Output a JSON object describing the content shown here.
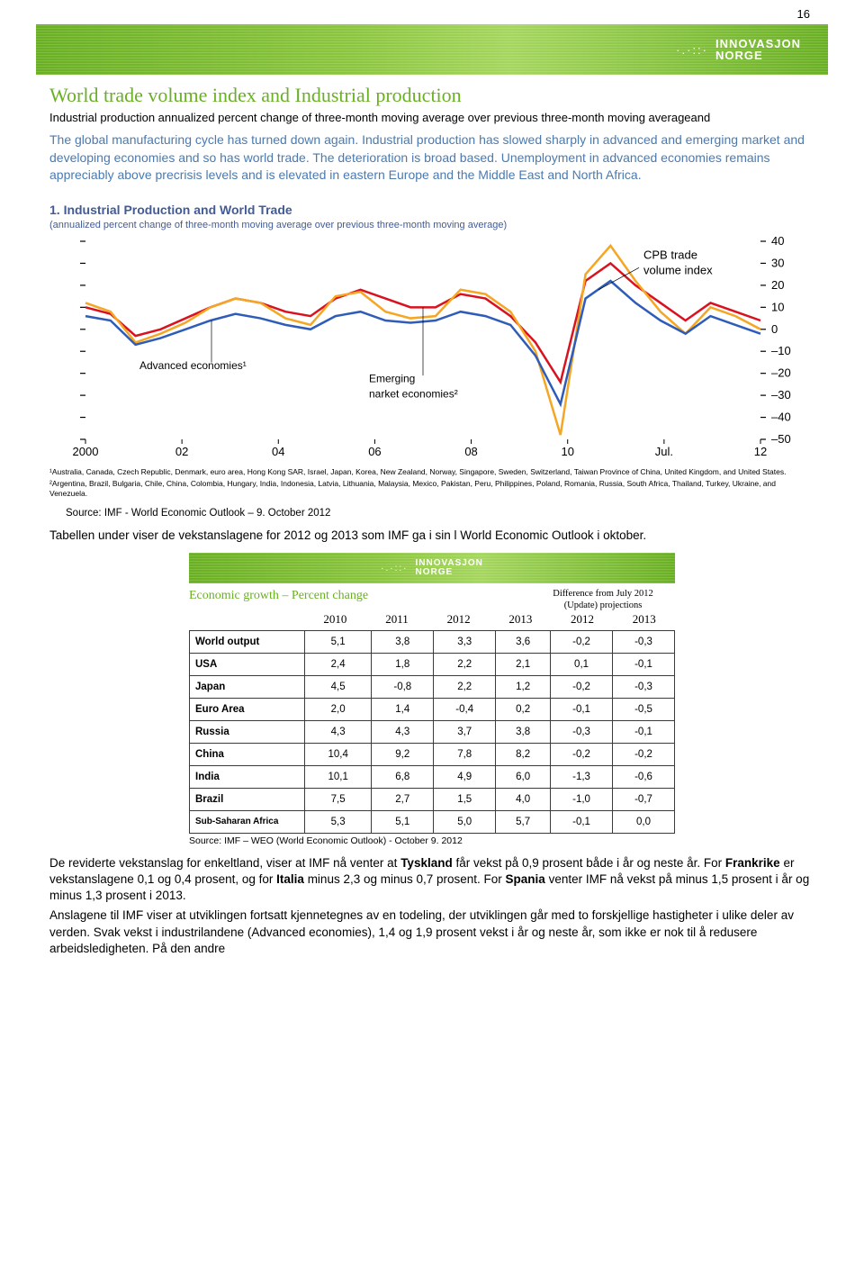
{
  "page_number": "16",
  "brand": {
    "dots": "·.·::·",
    "line1": "INNOVASJON",
    "line2": "NORGE"
  },
  "title": "World trade volume index and Industrial production",
  "subtitle": "Industrial production annualized percent change of three-month moving  average over previous three-month moving averageand",
  "blue_paragraph": "The global manufacturing cycle has turned down again. Industrial production has slowed sharply in advanced and emerging market and developing economies and so has world trade. The deterioration is broad based. Unemployment in advanced economies remains appreciably above precrisis levels and is elevated in eastern Europe and the Middle East and North Africa.",
  "chart": {
    "title": "1. Industrial Production and World Trade",
    "sub": "(annualized percent change of three-month moving average over previous three-month moving average)",
    "x_ticks": [
      "2000",
      "02",
      "04",
      "06",
      "08",
      "10",
      "Jul.",
      "12"
    ],
    "y_ticks": [
      "40",
      "30",
      "20",
      "10",
      "0",
      "–10",
      "–20",
      "–30",
      "–40",
      "–50"
    ],
    "label_cpb": "CPB trade volume index",
    "label_adv": "Advanced economies¹",
    "label_emg": "Emerging narket economies²",
    "colors": {
      "cpb": "#f5a623",
      "adv": "#2e5cb8",
      "emg": "#d9121f",
      "tick": "#000000",
      "grid": "#ffffff",
      "bg": "#ffffff",
      "label_text": "#000000"
    },
    "ylim": [
      -50,
      40
    ],
    "line_width": 2.5,
    "series": {
      "cpb": [
        12,
        8,
        -6,
        -2,
        3,
        10,
        14,
        12,
        5,
        2,
        15,
        17,
        8,
        5,
        6,
        18,
        16,
        8,
        -10,
        -48,
        25,
        38,
        22,
        8,
        -2,
        10,
        6,
        0
      ],
      "adv": [
        6,
        4,
        -7,
        -4,
        0,
        4,
        7,
        5,
        2,
        0,
        6,
        8,
        4,
        3,
        4,
        8,
        6,
        2,
        -12,
        -34,
        14,
        22,
        12,
        4,
        -2,
        6,
        2,
        -2
      ],
      "emg": [
        10,
        7,
        -3,
        0,
        5,
        10,
        14,
        12,
        8,
        6,
        14,
        18,
        14,
        10,
        10,
        16,
        14,
        6,
        -6,
        -24,
        22,
        30,
        20,
        12,
        4,
        12,
        8,
        4
      ]
    },
    "footnote1": "¹Australia, Canada, Czech Republic, Denmark, euro area, Hong Kong SAR, Israel, Japan, Korea, New Zealand, Norway, Singapore, Sweden, Switzerland, Taiwan Province of China, United Kingdom, and United States.",
    "footnote2": "²Argentina, Brazil, Bulgaria, Chile, China, Colombia, Hungary, India, Indonesia, Latvia, Lithuania, Malaysia, Mexico, Pakistan, Peru, Philippines, Poland, Romania, Russia, South Africa, Thailand, Turkey, Ukraine, and Venezuela."
  },
  "source_chart": "Source: IMF - World Economic Outlook – 9. October 2012",
  "para_tabellen": "Tabellen under viser de vekstanslagene for 2012 og 2013 som IMF ga i sin l World Economic Outlook i oktober.",
  "table": {
    "title": "Economic growth – Percent change",
    "diff_header1": "Difference from July 2012",
    "diff_header2": "(Update) projections",
    "years": [
      "2010",
      "2011",
      "2012",
      "2013",
      "2012",
      "2013"
    ],
    "rows": [
      {
        "label": "World output",
        "v": [
          "5,1",
          "3,8",
          "3,3",
          "3,6",
          "-0,2",
          "-0,3"
        ]
      },
      {
        "label": "USA",
        "v": [
          "2,4",
          "1,8",
          "2,2",
          "2,1",
          "0,1",
          "-0,1"
        ]
      },
      {
        "label": "Japan",
        "v": [
          "4,5",
          "-0,8",
          "2,2",
          "1,2",
          "-0,2",
          "-0,3"
        ]
      },
      {
        "label": "Euro Area",
        "v": [
          "2,0",
          "1,4",
          "-0,4",
          "0,2",
          "-0,1",
          "-0,5"
        ]
      },
      {
        "label": "Russia",
        "v": [
          "4,3",
          "4,3",
          "3,7",
          "3,8",
          "-0,3",
          "-0,1"
        ]
      },
      {
        "label": "China",
        "v": [
          "10,4",
          "9,2",
          "7,8",
          "8,2",
          "-0,2",
          "-0,2"
        ]
      },
      {
        "label": "India",
        "v": [
          "10,1",
          "6,8",
          "4,9",
          "6,0",
          "-1,3",
          "-0,6"
        ]
      },
      {
        "label": "Brazil",
        "v": [
          "7,5",
          "2,7",
          "1,5",
          "4,0",
          "-1,0",
          "-0,7"
        ]
      },
      {
        "label": "Sub-Saharan Africa",
        "v": [
          "5,3",
          "5,1",
          "5,0",
          "5,7",
          "-0,1",
          "0,0"
        ]
      }
    ],
    "source": "Source: IMF – WEO (World Economic Outlook) - October 9. 2012"
  },
  "bottom": {
    "p1a": "De reviderte vekstanslag for enkeltland, viser at IMF nå venter at ",
    "p1b": "Tyskland",
    "p1c": " får vekst på 0,9 prosent både i år og neste år. For ",
    "p1d": "Frankrike",
    "p1e": " er vekstanslagene 0,1 og 0,4 prosent, og for ",
    "p1f": "Italia",
    "p1g": " minus 2,3 og minus 0,7 prosent. For ",
    "p1h": "Spania",
    "p1i": " venter IMF nå vekst på minus 1,5 prosent i år og minus 1,3 prosent i 2013.",
    "p2": "Anslagene til IMF viser at utviklingen fortsatt kjennetegnes av en todeling, der utviklingen går med to forskjellige hastigheter i ulike deler av verden. Svak vekst i industrilandene (Advanced economies), 1,4 og 1,9 prosent vekst i år og neste år, som ikke er nok til å redusere arbeidsledigheten. På den andre"
  }
}
